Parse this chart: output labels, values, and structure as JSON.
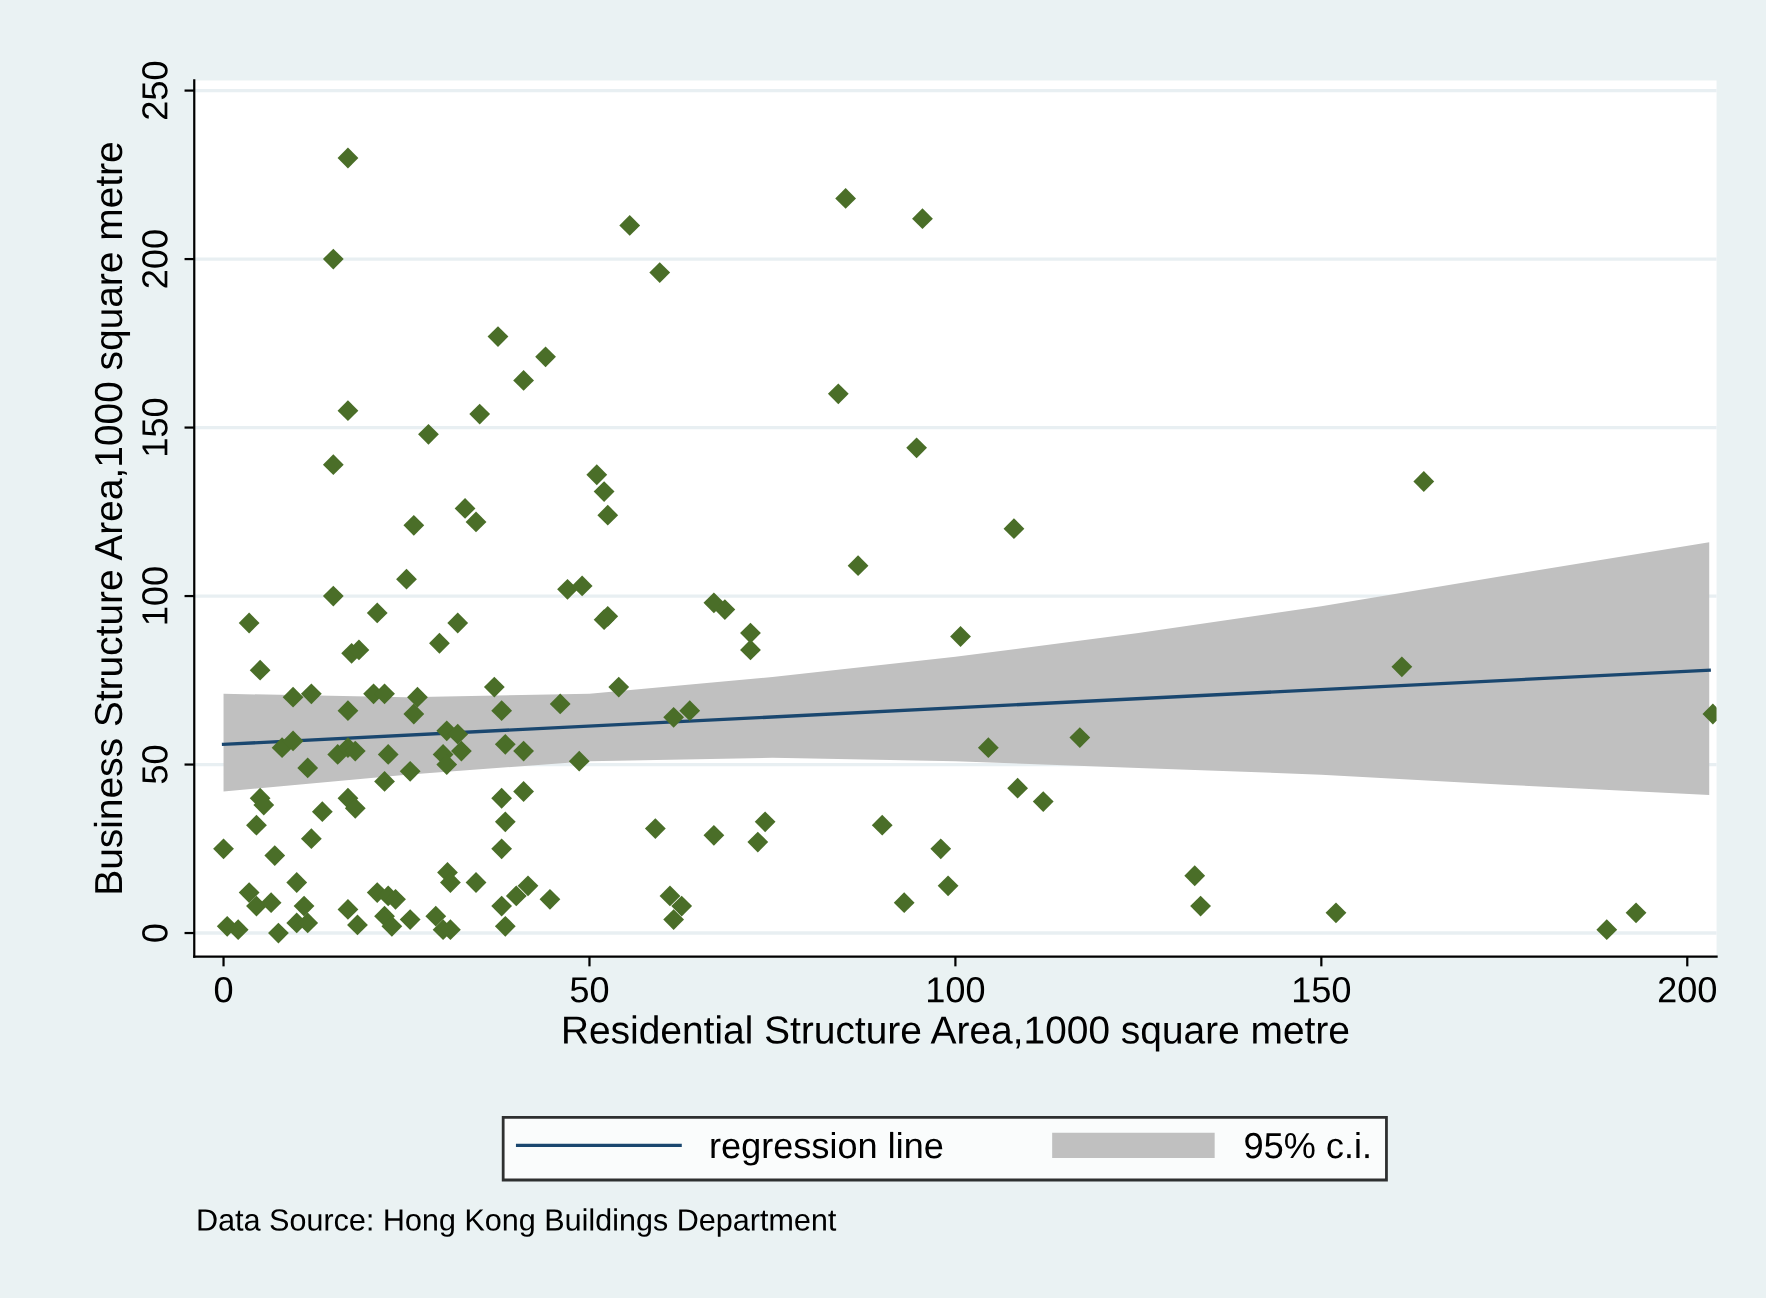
{
  "chart_data": {
    "type": "scatter",
    "xlabel": "Residential Structure Area,1000 square metre",
    "ylabel": "Business Structure Area,1000 square metre",
    "annotations": [
      "Data Source: Hong Kong Buildings Department"
    ],
    "xlim": [
      -4,
      204
    ],
    "ylim": [
      -7,
      253
    ],
    "xticks": [
      0,
      50,
      100,
      150,
      200
    ],
    "yticks": [
      0,
      50,
      100,
      150,
      200,
      250
    ],
    "grid": "y",
    "legend": "bottom",
    "series": [
      {
        "type": "line",
        "name": "regression line",
        "color": "#1a476f",
        "x": [
          0,
          203
        ],
        "values": [
          56,
          78
        ]
      },
      {
        "type": "line",
        "name": "95% c.i.",
        "color": "#c0c0c0",
        "x": [
          0,
          25,
          50,
          75,
          100,
          125,
          150,
          175,
          203
        ],
        "values": [
          null,
          null,
          null,
          null,
          null,
          null,
          null,
          null,
          null
        ],
        "lower": [
          42,
          47,
          51,
          52,
          51,
          49,
          47,
          44,
          41
        ],
        "upper": [
          71,
          70,
          71,
          76,
          82,
          89,
          97,
          106,
          116
        ]
      },
      {
        "type": "scatter",
        "color": "#4a6e28",
        "marker": "diamond",
        "x": [
          17,
          15,
          17,
          15,
          15,
          17.5,
          18.5,
          17,
          15.6,
          17,
          18,
          17,
          18,
          17,
          18.3,
          20.5,
          22,
          21,
          22.5,
          22,
          21,
          22.5,
          23.5,
          22,
          23,
          25,
          26,
          26,
          26.5,
          25.5,
          25.5,
          28,
          29.5,
          30.5,
          30,
          30.5,
          30.6,
          31,
          29,
          30,
          31,
          32,
          33,
          34.5,
          32.5,
          32,
          34.5,
          35,
          37.5,
          37,
          38,
          38.5,
          38,
          38.5,
          38,
          38,
          38.5,
          41,
          44,
          41,
          41,
          41.6,
          40,
          44.6,
          46,
          47,
          49,
          48.6,
          51,
          52,
          52.5,
          52,
          52.5,
          54,
          55.5,
          59.6,
          59,
          61,
          62.6,
          61.5,
          61.5,
          63.7,
          67,
          68.5,
          67,
          72,
          72,
          73,
          74,
          85,
          84,
          95.5,
          94.7,
          86.7,
          90,
          93,
          98,
          99,
          100.7,
          104.5,
          108,
          108.5,
          112,
          117,
          132.7,
          133.5,
          152,
          161,
          164,
          189,
          193,
          203.5,
          0,
          0.5,
          2,
          3.5,
          5,
          3.5,
          5,
          5.5,
          4.5,
          4.5,
          6.5,
          7,
          7.5,
          8,
          9.5,
          9.5,
          11,
          10,
          10,
          11.5,
          12,
          11.5,
          12,
          13.5
        ],
        "values": [
          230,
          200,
          155,
          139,
          100,
          83,
          84,
          66,
          53,
          55,
          54,
          40,
          37,
          7,
          2.4,
          71,
          71,
          95,
          53,
          45,
          12,
          11,
          10,
          5,
          2,
          105,
          121,
          65,
          70,
          48,
          4,
          148,
          86,
          60,
          53,
          50,
          18,
          15,
          5,
          1,
          1,
          92,
          126,
          122,
          54,
          59,
          15,
          154,
          177,
          73,
          66,
          56,
          40,
          33,
          25,
          8,
          2,
          164,
          171,
          54,
          42,
          14,
          11,
          10,
          68,
          102,
          103,
          51,
          136,
          131,
          124,
          93,
          94,
          73,
          210,
          196,
          31,
          11,
          8,
          4,
          64,
          66,
          98,
          96,
          29,
          89,
          84,
          27,
          33,
          218,
          160,
          212,
          144,
          109,
          32,
          9,
          25,
          14,
          88,
          55,
          120,
          43,
          39,
          58,
          17,
          8,
          6,
          79,
          134,
          1,
          6,
          65,
          25,
          2,
          1,
          92,
          78,
          12,
          40,
          38,
          32,
          8,
          9,
          23,
          0,
          55,
          57,
          70,
          8,
          15,
          3,
          3,
          71,
          49,
          28,
          36
        ]
      }
    ]
  }
}
